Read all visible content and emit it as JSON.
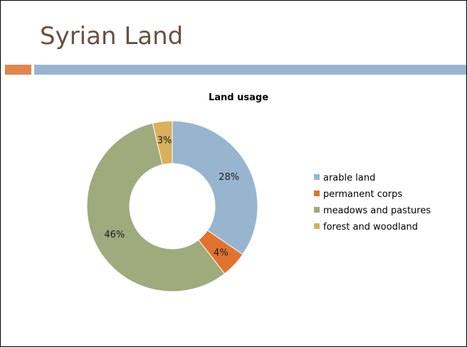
{
  "slide": {
    "title": "Syrian Land"
  },
  "chart_data": {
    "type": "pie",
    "title": "Land usage",
    "legend_position": "right",
    "categories": [
      "arable land",
      "permanent corps",
      "meadows and pastures",
      "forest and woodland"
    ],
    "values": [
      28,
      4,
      46,
      3
    ],
    "labels": [
      "28%",
      "4%",
      "46%",
      "3%"
    ],
    "colors": [
      "#98b5d0",
      "#e0742f",
      "#9faa7d",
      "#d9b15c"
    ]
  }
}
